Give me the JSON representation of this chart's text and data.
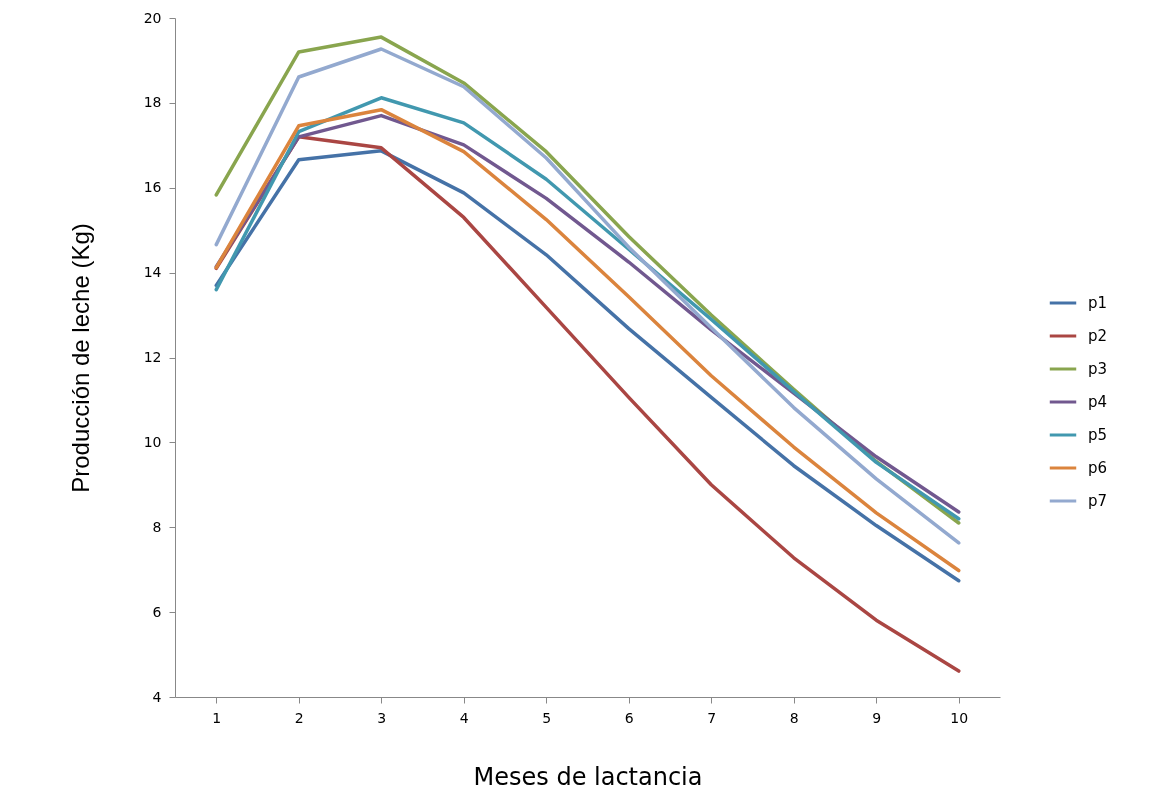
{
  "chart_data": {
    "type": "line",
    "xlabel": "Meses de lactancia",
    "ylabel": "Producción de leche (Kg)",
    "categories": [
      "1",
      "2",
      "3",
      "4",
      "5",
      "6",
      "7",
      "8",
      "9",
      "10"
    ],
    "ylim": [
      4,
      20
    ],
    "yticks": [
      4,
      6,
      8,
      10,
      12,
      14,
      16,
      18,
      20
    ],
    "grid": false,
    "legend": "right",
    "marker": "none",
    "line_style": "solid",
    "series": [
      {
        "name": "p1",
        "color": "#4572a7",
        "values": [
          13.7,
          16.66,
          16.87,
          15.88,
          14.42,
          12.68,
          11.06,
          9.45,
          8.04,
          6.74
        ]
      },
      {
        "name": "p2",
        "color": "#aa4643",
        "values": [
          14.1,
          17.2,
          16.94,
          15.3,
          13.18,
          11.06,
          9.0,
          7.28,
          5.81,
          4.61
        ]
      },
      {
        "name": "p3",
        "color": "#89a54e",
        "values": [
          15.83,
          19.2,
          19.55,
          18.47,
          16.85,
          14.85,
          13.0,
          11.25,
          9.55,
          8.1
        ]
      },
      {
        "name": "p4",
        "color": "#71588f",
        "values": [
          14.14,
          17.2,
          17.7,
          17.01,
          15.75,
          14.25,
          12.65,
          11.16,
          9.66,
          8.36
        ]
      },
      {
        "name": "p5",
        "color": "#4198af",
        "values": [
          13.6,
          17.32,
          18.12,
          17.53,
          16.2,
          14.55,
          12.9,
          11.2,
          9.53,
          8.2
        ]
      },
      {
        "name": "p6",
        "color": "#db843d",
        "values": [
          14.12,
          17.46,
          17.84,
          16.85,
          15.25,
          13.43,
          11.57,
          9.89,
          8.34,
          6.98
        ]
      },
      {
        "name": "p7",
        "color": "#93a9cf",
        "values": [
          14.66,
          18.61,
          19.27,
          18.38,
          16.7,
          14.6,
          12.7,
          10.82,
          9.14,
          7.63
        ]
      }
    ]
  }
}
